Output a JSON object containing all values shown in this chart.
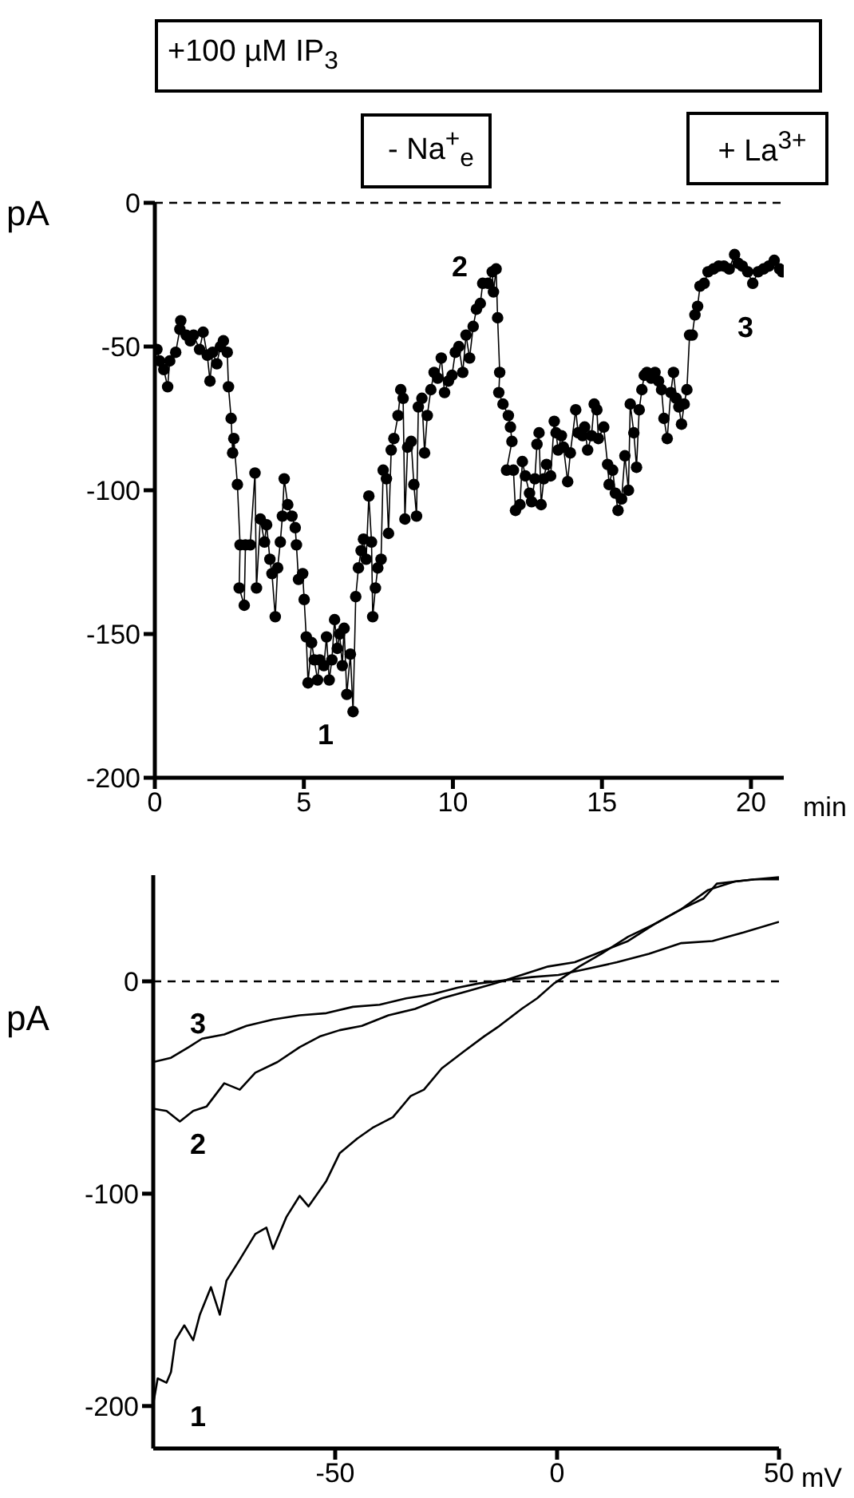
{
  "chart_data": [
    {
      "type": "line",
      "marker": "circle",
      "xlabel": "min",
      "ylabel": "pA",
      "xlim": [
        0,
        21.1
      ],
      "xticks": [
        0,
        5,
        10,
        15,
        20
      ],
      "ylim": [
        -200,
        0
      ],
      "yticks": [
        -200,
        -150,
        -100,
        -50,
        0
      ],
      "ref_lines": [
        {
          "axis": "y",
          "value": 0,
          "line_style": "dashed",
          "color": "#000000"
        }
      ],
      "annotations": [
        "+100 µM IP$_{3}$",
        "- Na$^{+}$$_{e}$",
        "+ La$^{3+}$",
        "1",
        "2",
        "3"
      ],
      "series": [
        {
          "color": "#000000",
          "x": [
            0.07,
            0.16,
            0.3,
            0.43,
            0.5,
            0.7,
            0.84,
            0.87,
            1.05,
            1.19,
            1.3,
            1.5,
            1.62,
            1.76,
            1.85,
            1.94,
            2.08,
            2.2,
            2.3,
            2.43,
            2.47,
            2.56,
            2.61,
            2.65,
            2.77,
            2.86,
            2.83,
            3.0,
            3.04,
            3.2,
            3.36,
            3.41,
            3.54,
            3.68,
            3.75,
            3.86,
            3.93,
            4.04,
            4.12,
            4.21,
            4.28,
            4.34,
            4.46,
            4.6,
            4.71,
            4.75,
            4.82,
            4.96,
            5.01,
            5.08,
            5.14,
            5.26,
            5.35,
            5.46,
            5.53,
            5.67,
            5.76,
            5.85,
            5.94,
            6.03,
            6.12,
            6.2,
            6.29,
            6.35,
            6.44,
            6.56,
            6.65,
            6.74,
            6.83,
            6.92,
            7.0,
            7.09,
            7.18,
            7.27,
            7.31,
            7.4,
            7.48,
            7.59,
            7.66,
            7.77,
            7.84,
            7.93,
            8.02,
            8.16,
            8.25,
            8.33,
            8.39,
            8.48,
            8.6,
            8.69,
            8.78,
            8.84,
            8.96,
            9.05,
            9.14,
            9.26,
            9.37,
            9.49,
            9.61,
            9.72,
            9.85,
            9.97,
            10.08,
            10.2,
            10.33,
            10.44,
            10.56,
            10.68,
            10.79,
            10.92,
            11.0,
            11.18,
            11.32,
            11.36,
            11.45,
            11.5,
            11.57,
            11.54,
            11.68,
            11.86,
            11.93,
            11.98,
            11.8,
            12.03,
            12.1,
            12.25,
            12.33,
            12.43,
            12.57,
            12.64,
            12.75,
            12.82,
            12.89,
            12.96,
            13.05,
            13.14,
            13.28,
            13.4,
            13.46,
            13.53,
            13.64,
            13.71,
            13.85,
            13.94,
            14.12,
            14.2,
            14.35,
            14.42,
            14.52,
            14.65,
            14.74,
            14.83,
            14.88,
            15.06,
            15.19,
            15.24,
            15.36,
            15.45,
            15.54,
            15.66,
            15.77,
            15.89,
            15.95,
            16.07,
            16.16,
            16.25,
            16.34,
            16.42,
            16.51,
            16.65,
            16.78,
            16.9,
            17.0,
            17.08,
            17.19,
            17.31,
            17.4,
            17.49,
            17.58,
            17.67,
            17.76,
            17.85,
            17.94,
            18.03,
            18.12,
            18.21,
            18.29,
            18.43,
            18.56,
            18.74,
            18.92,
            19.09,
            19.27,
            19.45,
            19.57,
            19.71,
            19.89,
            20.06,
            20.24,
            20.42,
            20.6,
            20.78,
            20.96,
            21.05
          ],
          "values": [
            -51,
            -55,
            -58,
            -64,
            -55,
            -52,
            -44,
            -41,
            -46,
            -48,
            -46,
            -51,
            -45,
            -53,
            -62,
            -52,
            -56,
            -50,
            -48,
            -52,
            -64,
            -75,
            -87,
            -82,
            -98,
            -119,
            -134,
            -140,
            -119,
            -119,
            -94,
            -134,
            -110,
            -118,
            -112,
            -124,
            -129,
            -144,
            -127,
            -118,
            -109,
            -96,
            -105,
            -109,
            -113,
            -119,
            -131,
            -129,
            -138,
            -151,
            -167,
            -153,
            -159,
            -166,
            -159,
            -161,
            -151,
            -166,
            -159,
            -145,
            -155,
            -150,
            -161,
            -148,
            -171,
            -157,
            -177,
            -137,
            -127,
            -121,
            -117,
            -124,
            -102,
            -118,
            -144,
            -134,
            -127,
            -124,
            -93,
            -96,
            -115,
            -86,
            -82,
            -74,
            -65,
            -68,
            -110,
            -85,
            -83,
            -98,
            -109,
            -71,
            -68,
            -87,
            -74,
            -65,
            -59,
            -61,
            -54,
            -66,
            -62,
            -60,
            -52,
            -50,
            -59,
            -46,
            -54,
            -43,
            -37,
            -35,
            -28,
            -28,
            -24,
            -31,
            -23,
            -40,
            -59,
            -66,
            -70,
            -74,
            -78,
            -83,
            -93,
            -93,
            -107,
            -105,
            -90,
            -95,
            -101,
            -104,
            -96,
            -84,
            -80,
            -105,
            -96,
            -91,
            -95,
            -76,
            -80,
            -86,
            -81,
            -85,
            -97,
            -87,
            -72,
            -80,
            -81,
            -78,
            -86,
            -81,
            -70,
            -72,
            -82,
            -78,
            -91,
            -98,
            -93,
            -101,
            -107,
            -103,
            -88,
            -100,
            -70,
            -80,
            -92,
            -72,
            -65,
            -60,
            -59,
            -61,
            -59,
            -62,
            -65,
            -75,
            -82,
            -66,
            -59,
            -68,
            -71,
            -77,
            -70,
            -65,
            -46,
            -46,
            -39,
            -36,
            -29,
            -28,
            -24,
            -23,
            -22,
            -22,
            -23,
            -18,
            -21,
            -22,
            -24,
            -28,
            -24,
            -23,
            -22,
            -20,
            -23,
            -24
          ]
        }
      ]
    },
    {
      "type": "line",
      "marker": "none",
      "xlabel": "mV",
      "ylabel": "pA",
      "xlim": [
        -91,
        50
      ],
      "xticks": [
        -50,
        0,
        50
      ],
      "ylim": [
        -220,
        50
      ],
      "yticks": [
        -200,
        -100,
        0
      ],
      "ref_lines": [
        {
          "axis": "y",
          "value": 0,
          "line_style": "dashed",
          "color": "#000000"
        }
      ],
      "series": [
        {
          "name": "1",
          "color": "#000000",
          "x": [
            -91,
            -90,
            -88,
            -87,
            -86,
            -84,
            -82,
            -80.5,
            -78,
            -76,
            -74.5,
            -71.5,
            -68,
            -65.5,
            -64,
            -61,
            -58,
            -56,
            -52,
            -49,
            -45,
            -41.6,
            -37,
            -33,
            -30,
            -26,
            -21,
            -16.5,
            -13,
            -8,
            -4.5,
            -0.7,
            1.5,
            5,
            10,
            16,
            22,
            28,
            33,
            36,
            40,
            44.5,
            50
          ],
          "values": [
            -199,
            -187,
            -189,
            -184,
            -169,
            -162,
            -169,
            -157,
            -144,
            -157,
            -141,
            -131,
            -119,
            -116,
            -126,
            -111,
            -101,
            -106,
            -94,
            -81,
            -74,
            -69,
            -64,
            -54,
            -51,
            -41,
            -33,
            -26,
            -21,
            -13,
            -8,
            -1,
            2,
            7,
            13,
            21,
            27,
            34,
            39,
            46,
            47,
            48,
            48
          ]
        },
        {
          "name": "2",
          "color": "#000000",
          "x": [
            -91,
            -88,
            -85,
            -82,
            -79,
            -75,
            -71.5,
            -68,
            -63,
            -58,
            -53.5,
            -49,
            -44,
            -38,
            -32,
            -26,
            -20,
            -14,
            -8,
            -2,
            4,
            10,
            16,
            22,
            28,
            34,
            40,
            44.5,
            50
          ],
          "values": [
            -60,
            -61,
            -66,
            -61,
            -59,
            -48,
            -51,
            -43,
            -38,
            -31,
            -26,
            -23,
            -21,
            -16,
            -13,
            -8,
            -4.5,
            -1,
            3,
            7,
            9,
            14,
            19,
            27,
            34,
            43,
            47,
            48,
            49
          ]
        },
        {
          "name": "3",
          "color": "#000000",
          "x": [
            -91,
            -87,
            -83,
            -80,
            -75,
            -70,
            -64,
            -58,
            -52,
            -46,
            -40,
            -34,
            -28,
            -22.5,
            -17.7,
            -11.7,
            -5.7,
            0.3,
            6,
            13.5,
            20.7,
            28,
            35,
            42,
            50
          ],
          "values": [
            -38,
            -36,
            -31,
            -27,
            -25,
            -21,
            -18,
            -16,
            -15,
            -12,
            -11,
            -8,
            -6,
            -3,
            -1,
            0.5,
            2,
            3,
            5.5,
            9,
            13,
            18,
            19,
            23,
            28
          ]
        }
      ]
    }
  ]
}
